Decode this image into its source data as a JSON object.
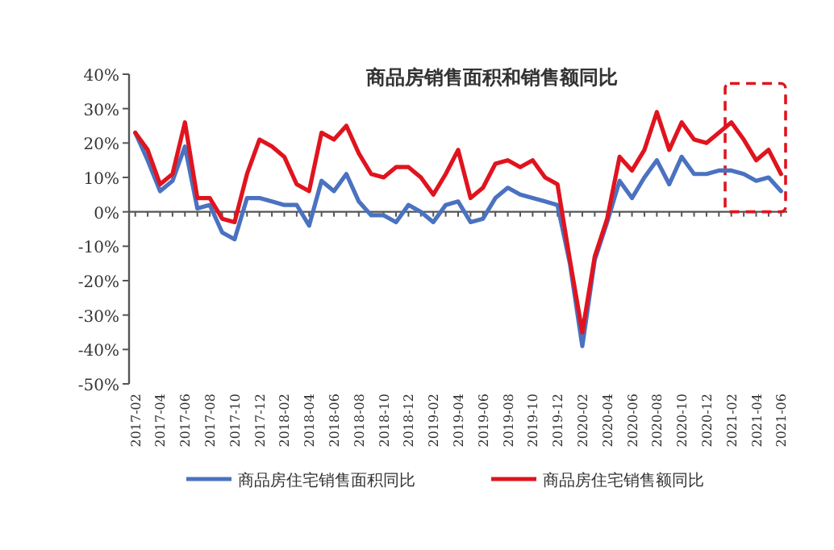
{
  "chart_data": {
    "type": "line",
    "title": "商品房销售面积和销售额同比",
    "categories": [
      "2017-02",
      null,
      "2017-04",
      null,
      "2017-06",
      null,
      "2017-08",
      null,
      "2017-10",
      null,
      "2017-12",
      null,
      "2018-02",
      null,
      "2018-04",
      null,
      "2018-06",
      null,
      "2018-08",
      null,
      "2018-10",
      null,
      "2018-12",
      null,
      "2019-02",
      null,
      "2019-04",
      null,
      "2019-06",
      null,
      "2019-08",
      null,
      "2019-10",
      null,
      "2019-12",
      null,
      "2020-02",
      null,
      "2020-04",
      null,
      "2020-06",
      null,
      "2020-08",
      null,
      "2020-10",
      null,
      "2020-12",
      null,
      "2021-02",
      null,
      "2021-04",
      null,
      "2021-06"
    ],
    "series": [
      {
        "name": "商品房住宅销售面积同比",
        "color": "#4a72c0",
        "values": [
          23,
          15,
          6,
          9,
          19,
          1,
          2,
          -6,
          -8,
          4,
          4,
          3,
          2,
          2,
          -4,
          9,
          6,
          11,
          3,
          -1,
          -1,
          -3,
          2,
          0,
          -3,
          2,
          3,
          -3,
          -2,
          4,
          7,
          5,
          4,
          3,
          2,
          -15,
          -39,
          -14,
          -3,
          9,
          4,
          10,
          15,
          8,
          16,
          11,
          11,
          12,
          12,
          11,
          9,
          10,
          6
        ]
      },
      {
        "name": "商品房住宅销售额同比",
        "color": "#e0141e",
        "values": [
          23,
          18,
          8,
          11,
          26,
          4,
          4,
          -2,
          -3,
          11,
          21,
          19,
          16,
          8,
          6,
          23,
          21,
          25,
          17,
          11,
          10,
          13,
          13,
          10,
          5,
          11,
          18,
          4,
          7,
          14,
          15,
          13,
          15,
          10,
          8,
          -14,
          -35,
          -13,
          -2,
          16,
          12,
          18,
          29,
          18,
          26,
          21,
          20,
          23,
          26,
          21,
          15,
          18,
          11
        ]
      }
    ],
    "ylim": [
      -50,
      40
    ],
    "yticks": [
      {
        "value": -50,
        "label": "-50%"
      },
      {
        "value": -40,
        "label": "-40%"
      },
      {
        "value": -30,
        "label": "-30%"
      },
      {
        "value": -20,
        "label": "-20%"
      },
      {
        "value": -10,
        "label": "-10%"
      },
      {
        "value": 0,
        "label": "0%"
      },
      {
        "value": 10,
        "label": "10%"
      },
      {
        "value": 20,
        "label": "20%"
      },
      {
        "value": 30,
        "label": "30%"
      },
      {
        "value": 40,
        "label": "40%"
      }
    ],
    "legend": "bottom"
  }
}
